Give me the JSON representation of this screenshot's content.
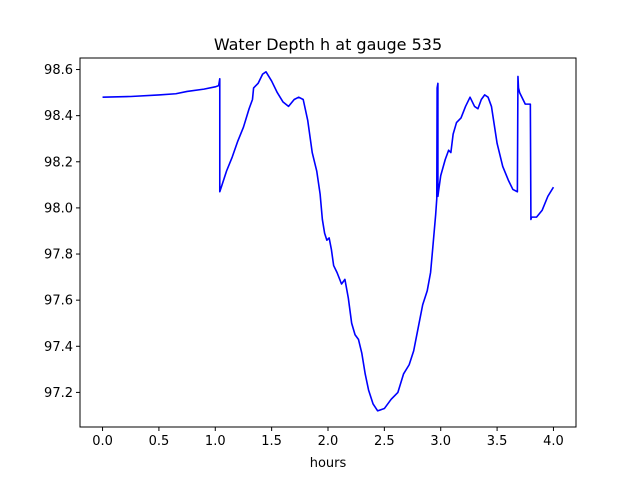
{
  "chart_data": {
    "type": "line",
    "title": "Water Depth h at gauge 535",
    "xlabel": "hours",
    "ylabel": "",
    "xlim": [
      -0.2,
      4.2
    ],
    "ylim": [
      97.05,
      98.65
    ],
    "xticks": [
      0.0,
      0.5,
      1.0,
      1.5,
      2.0,
      2.5,
      3.0,
      3.5,
      4.0
    ],
    "xtick_labels": [
      "0.0",
      "0.5",
      "1.0",
      "1.5",
      "2.0",
      "2.5",
      "3.0",
      "3.5",
      "4.0"
    ],
    "yticks": [
      97.2,
      97.4,
      97.6,
      97.8,
      98.0,
      98.2,
      98.4,
      98.6
    ],
    "ytick_labels": [
      "97.2",
      "97.4",
      "97.6",
      "97.8",
      "98.0",
      "98.2",
      "98.4",
      "98.6"
    ],
    "grid": false,
    "series": [
      {
        "color": "#0000ff",
        "x": [
          0.0,
          0.25,
          0.5,
          0.65,
          0.75,
          0.9,
          1.0,
          1.03,
          1.04,
          1.04,
          1.06,
          1.1,
          1.15,
          1.2,
          1.25,
          1.3,
          1.33,
          1.34,
          1.38,
          1.42,
          1.45,
          1.5,
          1.55,
          1.6,
          1.65,
          1.7,
          1.74,
          1.78,
          1.82,
          1.86,
          1.9,
          1.93,
          1.95,
          1.97,
          1.99,
          2.01,
          2.03,
          2.05,
          2.08,
          2.12,
          2.15,
          2.18,
          2.21,
          2.24,
          2.27,
          2.3,
          2.33,
          2.36,
          2.4,
          2.44,
          2.5,
          2.56,
          2.62,
          2.67,
          2.72,
          2.76,
          2.8,
          2.84,
          2.88,
          2.91,
          2.93,
          2.955,
          2.965,
          2.968,
          2.975,
          2.975,
          2.98,
          3.0,
          3.04,
          3.07,
          3.09,
          3.11,
          3.14,
          3.18,
          3.22,
          3.26,
          3.3,
          3.33,
          3.36,
          3.39,
          3.42,
          3.45,
          3.5,
          3.55,
          3.6,
          3.64,
          3.68,
          3.685,
          3.69,
          3.7,
          3.75,
          3.795,
          3.8,
          3.805,
          3.85,
          3.9,
          3.95,
          4.0
        ],
        "y": [
          98.48,
          98.483,
          98.49,
          98.495,
          98.505,
          98.515,
          98.525,
          98.53,
          98.56,
          98.07,
          98.1,
          98.16,
          98.22,
          98.29,
          98.35,
          98.43,
          98.47,
          98.52,
          98.54,
          98.58,
          98.59,
          98.55,
          98.5,
          98.46,
          98.44,
          98.47,
          98.48,
          98.47,
          98.38,
          98.24,
          98.16,
          98.06,
          97.95,
          97.89,
          97.86,
          97.87,
          97.82,
          97.75,
          97.72,
          97.67,
          97.69,
          97.61,
          97.5,
          97.45,
          97.43,
          97.37,
          97.28,
          97.21,
          97.15,
          97.12,
          97.13,
          97.17,
          97.2,
          97.28,
          97.32,
          97.38,
          97.48,
          97.58,
          97.64,
          97.72,
          97.83,
          97.97,
          98.04,
          98.52,
          98.54,
          98.05,
          98.07,
          98.14,
          98.21,
          98.25,
          98.24,
          98.32,
          98.37,
          98.39,
          98.44,
          98.48,
          98.44,
          98.43,
          98.47,
          98.49,
          98.48,
          98.44,
          98.28,
          98.18,
          98.12,
          98.08,
          98.07,
          98.57,
          98.52,
          98.5,
          98.45,
          98.45,
          97.95,
          97.96,
          97.96,
          97.99,
          98.05,
          98.09
        ]
      }
    ]
  }
}
